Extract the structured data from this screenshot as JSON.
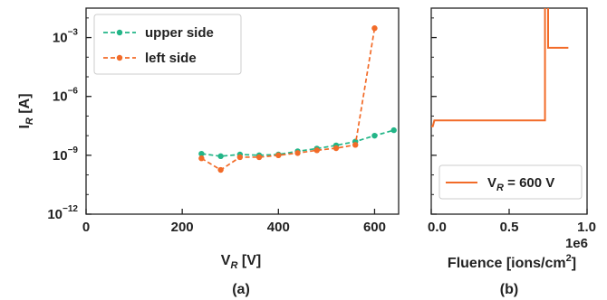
{
  "chart_data": [
    {
      "type": "line",
      "panel_label": "(a)",
      "xlabel_main": "V",
      "xlabel_sub": "R",
      "xlabel_unit": " [V]",
      "ylabel_main": "I",
      "ylabel_sub": "R",
      "ylabel_unit": " [A]",
      "xlim": [
        0,
        650
      ],
      "ylim_log10": [
        -12,
        -1.5
      ],
      "y_scale": "log",
      "grid": false,
      "legend_placement": "top-left",
      "x_ticks": [
        0,
        200,
        400,
        600
      ],
      "x_tick_labels": [
        "0",
        "200",
        "400",
        "600"
      ],
      "y_ticks_log10": [
        -12,
        -9,
        -6,
        -3
      ],
      "y_tick_labels": [
        {
          "base": "10",
          "exp": "−12"
        },
        {
          "base": "10",
          "exp": "−9"
        },
        {
          "base": "10",
          "exp": "−6"
        },
        {
          "base": "10",
          "exp": "−3"
        }
      ],
      "series": [
        {
          "name": "upper side",
          "color": "#22b587",
          "x": [
            240,
            280,
            320,
            360,
            400,
            440,
            480,
            520,
            560,
            600,
            640
          ],
          "y": [
            1.2e-09,
            9e-10,
            1.1e-09,
            1e-09,
            1.1e-09,
            1.6e-09,
            2.2e-09,
            3.2e-09,
            5e-09,
            1e-08,
            1.9e-08
          ]
        },
        {
          "name": "left side",
          "color": "#f26b28",
          "x": [
            240,
            280,
            320,
            360,
            400,
            440,
            480,
            520,
            560,
            600
          ],
          "y": [
            7e-10,
            1.8e-10,
            8e-10,
            8e-10,
            1e-09,
            1.3e-09,
            1.8e-09,
            2.3e-09,
            3.4e-09,
            0.003
          ]
        }
      ]
    },
    {
      "type": "line",
      "panel_label": "(b)",
      "xlabel_text": "Fluence [ions/cm",
      "xlabel_sup": "2",
      "xlabel_close": "]",
      "offset_text": "1e6",
      "xlim": [
        0,
        1.0
      ],
      "y_scale": "log",
      "y_shared_with": "(a)",
      "x_ticks": [
        0.0,
        0.5,
        1.0
      ],
      "x_tick_labels": [
        "0.0",
        "0.5",
        "1.0"
      ],
      "legend_placement": "bottom-right",
      "series": [
        {
          "name_main": "V",
          "name_sub": "R",
          "name_rest": " = 600 V",
          "color": "#f26b28",
          "x": [
            0.0,
            0.01,
            0.02,
            0.05,
            0.1,
            0.2,
            0.3,
            0.4,
            0.5,
            0.6,
            0.7,
            0.73,
            0.73,
            0.75,
            0.75,
            0.77,
            0.77,
            0.88
          ],
          "y": [
            3e-08,
            3e-08,
            6e-08,
            6e-08,
            6e-08,
            6e-08,
            6e-08,
            6e-08,
            6e-08,
            6e-08,
            6e-08,
            6e-08,
            0.05,
            0.05,
            0.0003,
            0.0003,
            0.0003,
            0.0003
          ]
        }
      ]
    }
  ]
}
